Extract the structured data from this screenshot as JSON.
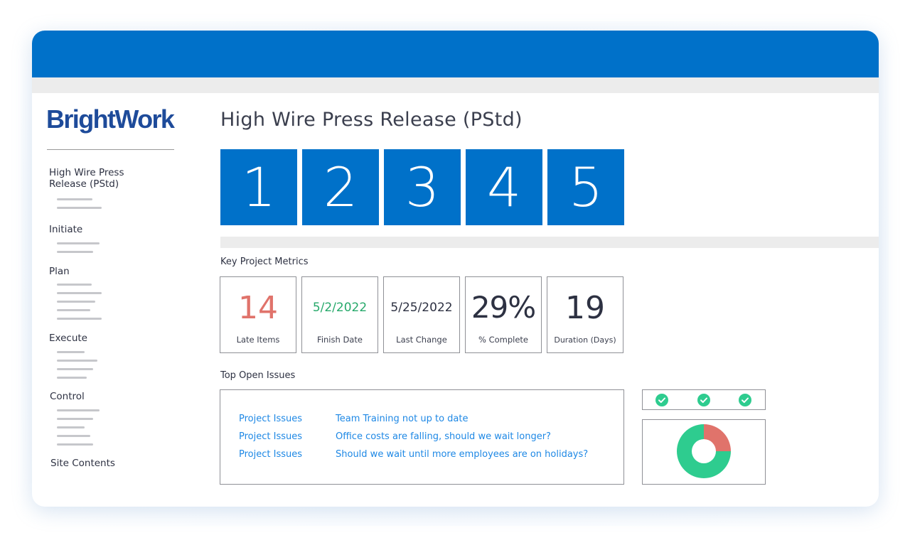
{
  "brand": {
    "logo_text": "BrightWork"
  },
  "sidebar": {
    "items": [
      {
        "label": "High Wire Press Release (PStd)"
      },
      {
        "label": "Initiate"
      },
      {
        "label": "Plan"
      },
      {
        "label": "Execute"
      },
      {
        "label": "Control"
      },
      {
        "label": "Site Contents"
      }
    ]
  },
  "main": {
    "title": "High Wire Press Release (PStd)",
    "steps": [
      "1",
      "2",
      "3",
      "4",
      "5"
    ],
    "metrics_heading": "Key Project Metrics",
    "metrics": [
      {
        "value": "14",
        "label": "Late Items",
        "color": "#e0736b"
      },
      {
        "value": "5/2/2022",
        "label": "Finish Date",
        "color": "#27a96b"
      },
      {
        "value": "5/25/2022",
        "label": "Last Change",
        "color": "#2d3142"
      },
      {
        "value": "29%",
        "label": "% Complete",
        "color": "#2d3142"
      },
      {
        "value": "19",
        "label": "Duration (Days)",
        "color": "#2d3142"
      }
    ],
    "issues_heading": "Top Open Issues",
    "issues": [
      {
        "type": "Project Issues",
        "title": "Team Training not up to date"
      },
      {
        "type": "Project Issues",
        "title": "Office costs are falling, should we wait longer?"
      },
      {
        "type": "Project Issues",
        "title": "Should we wait until more employees are on holidays?"
      }
    ],
    "status_checks": [
      "check-circle-icon",
      "check-circle-icon",
      "check-circle-icon"
    ],
    "donut": {
      "segments": [
        {
          "value": 75,
          "color": "#2ecc8f"
        },
        {
          "value": 25,
          "color": "#e0736b"
        }
      ]
    }
  },
  "colors": {
    "primary": "#0071c9",
    "accent_green": "#2ecc8f",
    "accent_red": "#e0736b",
    "link": "#1e88e5"
  }
}
